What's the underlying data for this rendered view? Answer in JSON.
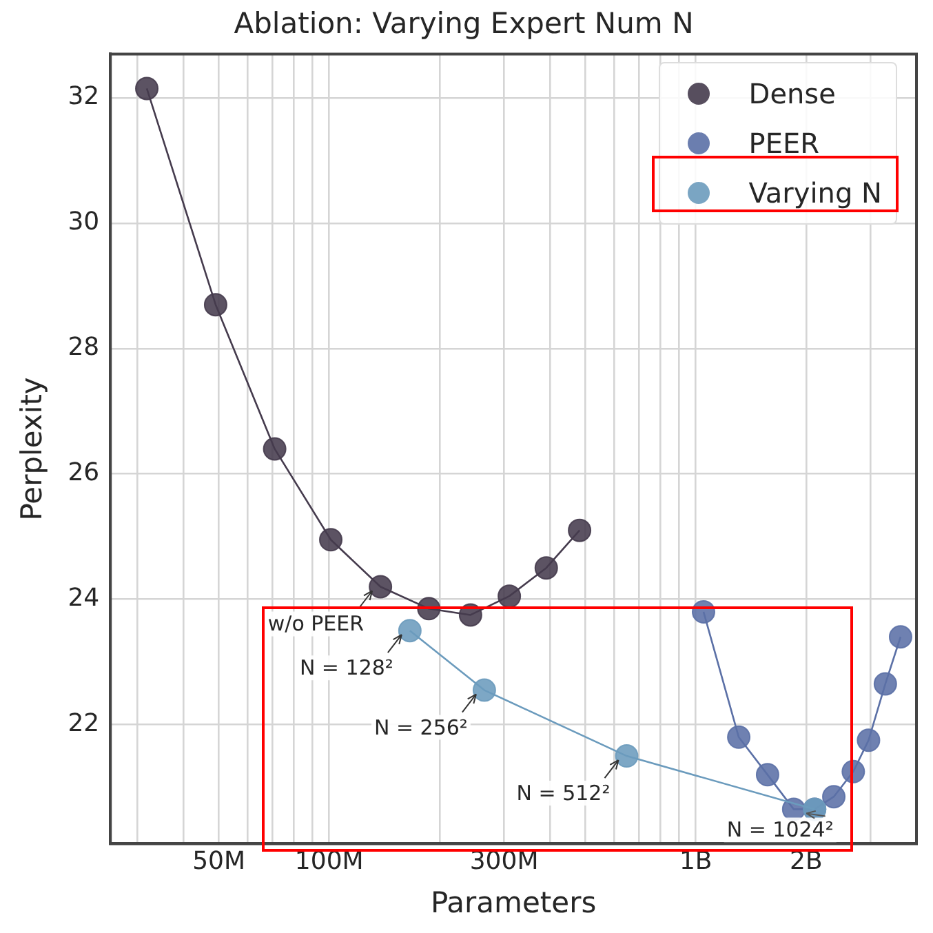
{
  "chart_data": {
    "type": "scatter",
    "title": "Ablation: Varying Expert Num N",
    "xlabel": "Parameters",
    "ylabel": "Perplexity",
    "log": "x",
    "grid": true,
    "legend": "top right",
    "marker": "circle",
    "line_style": "solid",
    "xlim": [
      25300000,
      4000000000
    ],
    "xticks": [
      {
        "value": 30000000,
        "label": null
      },
      {
        "value": 40000000,
        "label": null
      },
      {
        "value": 50000000,
        "label": "50M"
      },
      {
        "value": 60000000,
        "label": null
      },
      {
        "value": 70000000,
        "label": null
      },
      {
        "value": 80000000,
        "label": null
      },
      {
        "value": 90000000,
        "label": null
      },
      {
        "value": 100000000,
        "label": "100M"
      },
      {
        "value": 200000000,
        "label": null
      },
      {
        "value": 300000000,
        "label": "300M"
      },
      {
        "value": 400000000,
        "label": null
      },
      {
        "value": 500000000,
        "label": null
      },
      {
        "value": 600000000,
        "label": null
      },
      {
        "value": 700000000,
        "label": null
      },
      {
        "value": 800000000,
        "label": null
      },
      {
        "value": 900000000,
        "label": null
      },
      {
        "value": 1000000000,
        "label": "1B"
      },
      {
        "value": 2000000000,
        "label": "2B"
      },
      {
        "value": 3000000000,
        "label": null
      },
      {
        "value": 4000000000,
        "label": null
      }
    ],
    "ylim": [
      20.1,
      32.7
    ],
    "yticks": [
      22,
      24,
      26,
      28,
      30,
      32
    ],
    "series": [
      {
        "name": "Dense",
        "type": "line",
        "color": "#453b4d",
        "x": [
          31800000,
          49000000,
          71000000,
          101000000,
          138000000,
          187000000,
          243000000,
          310000000,
          391000000,
          482000000
        ],
        "values": [
          32.15,
          28.7,
          26.4,
          24.95,
          24.2,
          23.85,
          23.75,
          24.05,
          24.5,
          25.1
        ]
      },
      {
        "name": "PEER",
        "type": "line",
        "color": "#5b70a6",
        "x": [
          1050000000,
          1310000000,
          1570000000,
          1850000000,
          2110000000,
          2380000000,
          2690000000,
          2960000000,
          3290000000,
          3620000000
        ],
        "values": [
          23.8,
          21.8,
          21.2,
          20.65,
          20.65,
          20.85,
          21.25,
          21.75,
          22.65,
          23.4
        ]
      },
      {
        "name": "Varying N",
        "type": "line",
        "color": "#6b9bbd",
        "x": [
          166000000,
          265000000,
          648000000,
          2110000000
        ],
        "values": [
          23.5,
          22.55,
          21.5,
          20.65
        ]
      }
    ],
    "annotations": [
      {
        "text": "w/o PEER",
        "x": 138000000,
        "y": 24.2
      },
      {
        "text": "N = 128²",
        "x": 166000000,
        "y": 23.5
      },
      {
        "text": "N = 256²",
        "x": 265000000,
        "y": 22.55
      },
      {
        "text": "N = 512²",
        "x": 648000000,
        "y": 21.5
      },
      {
        "text": "N = 1024²",
        "x": 2110000000,
        "y": 20.65
      }
    ]
  }
}
